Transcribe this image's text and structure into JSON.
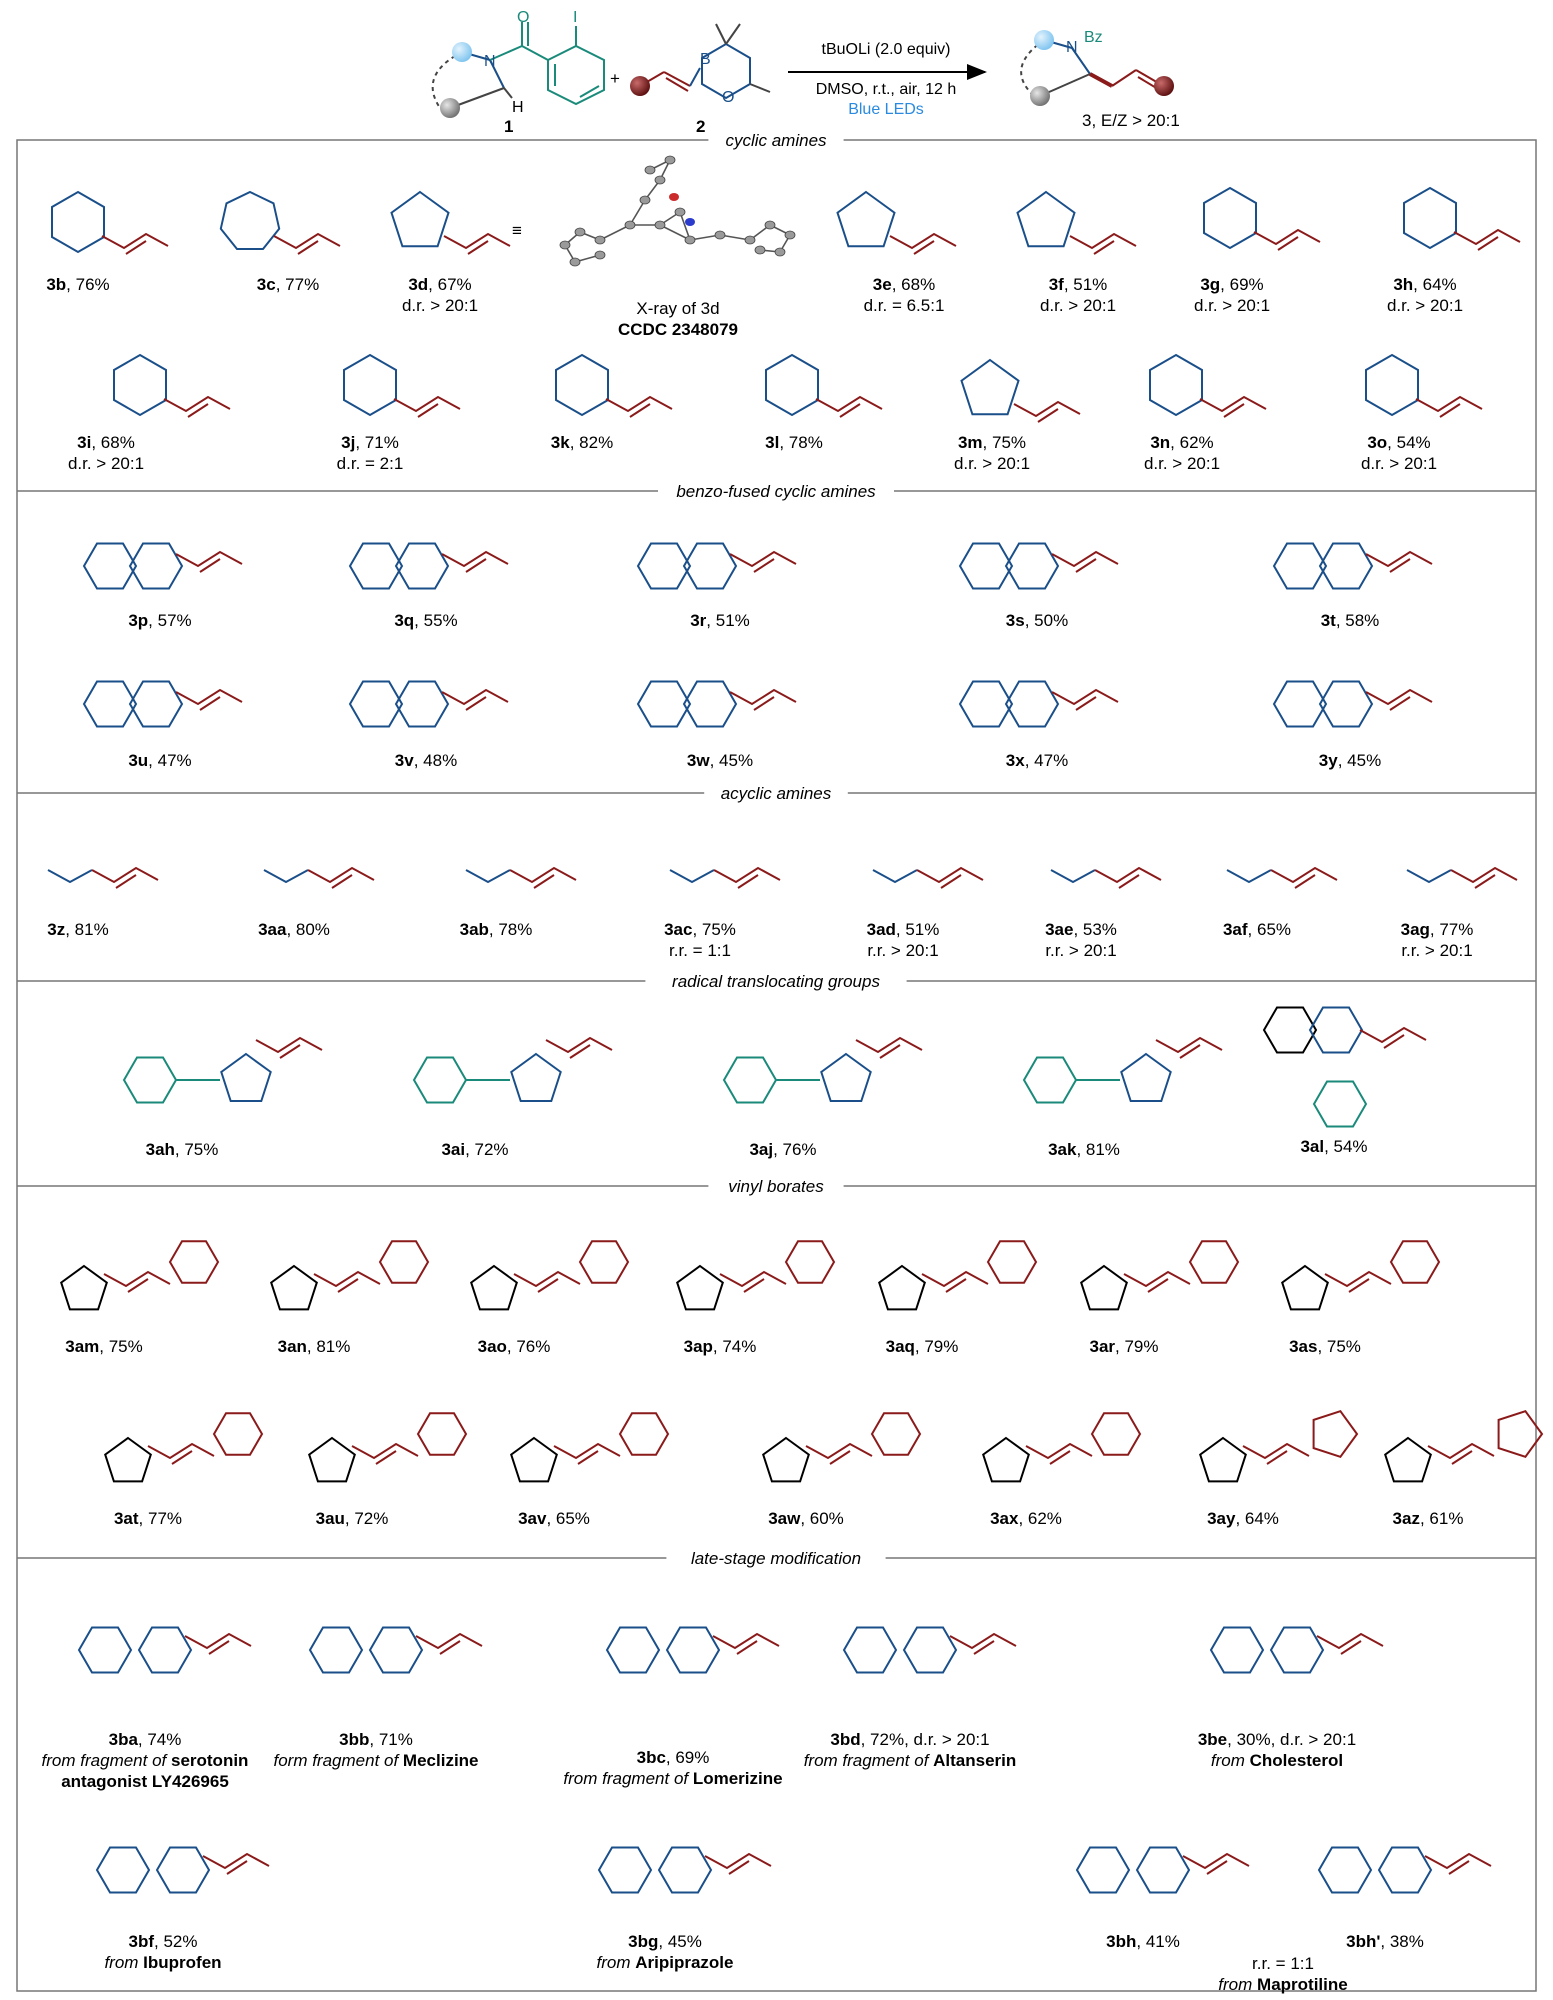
{
  "colors": {
    "amine": "#1a4f8a",
    "aryl": "#1a8a7a",
    "alkene": "#8b1a1a",
    "frame": "#777777",
    "highlight": "#9fd2f2",
    "led": "#2a8ae0"
  },
  "scheme": {
    "reactant1_label": "1",
    "reactant2_label": "2",
    "product_label": "3, E/Z > 20:1",
    "plus": "+",
    "reagent": "tBuOLi (2.0 equiv)",
    "conditions": "DMSO, r.t., air, 12 h",
    "light": "Blue LEDs",
    "atoms": {
      "N": "N",
      "H": "H",
      "O": "O",
      "I": "I",
      "B": "B",
      "Bz": "Bz"
    }
  },
  "sections": [
    "cyclic amines",
    "benzo-fused cyclic amines",
    "acyclic amines",
    "radical translocating groups",
    "vinyl borates",
    "late-stage modification"
  ],
  "xray": {
    "caption": "X-ray of 3d",
    "ccdc": "CCDC 2348079",
    "equiv_symbol": "≡"
  },
  "entries": [
    {
      "id": "3b",
      "line1": "3b, 76%"
    },
    {
      "id": "3c",
      "line1": "3c, 77%"
    },
    {
      "id": "3d",
      "line1": "3d, 67%",
      "line2": "d.r. > 20:1"
    },
    {
      "id": "3e",
      "line1": "3e, 68%",
      "line2": "d.r. = 6.5:1"
    },
    {
      "id": "3f",
      "line1": "3f, 51%",
      "line2": "d.r. > 20:1"
    },
    {
      "id": "3g",
      "line1": "3g, 69%",
      "line2": "d.r. > 20:1"
    },
    {
      "id": "3h",
      "line1": "3h, 64%",
      "line2": "d.r. > 20:1"
    },
    {
      "id": "3i",
      "line1": "3i, 68%",
      "line2": "d.r. > 20:1"
    },
    {
      "id": "3j",
      "line1": "3j, 71%",
      "line2": "d.r. = 2:1"
    },
    {
      "id": "3k",
      "line1": "3k, 82%"
    },
    {
      "id": "3l",
      "line1": "3l, 78%"
    },
    {
      "id": "3m",
      "line1": "3m, 75%",
      "line2": "d.r. > 20:1"
    },
    {
      "id": "3n",
      "line1": "3n, 62%",
      "line2": "d.r. > 20:1"
    },
    {
      "id": "3o",
      "line1": "3o, 54%",
      "line2": "d.r. > 20:1"
    },
    {
      "id": "3p",
      "line1": "3p, 57%"
    },
    {
      "id": "3q",
      "line1": "3q, 55%"
    },
    {
      "id": "3r",
      "line1": "3r, 51%"
    },
    {
      "id": "3s",
      "line1": "3s, 50%"
    },
    {
      "id": "3t",
      "line1": "3t, 58%"
    },
    {
      "id": "3u",
      "line1": "3u, 47%"
    },
    {
      "id": "3v",
      "line1": "3v, 48%"
    },
    {
      "id": "3w",
      "line1": "3w, 45%"
    },
    {
      "id": "3x",
      "line1": "3x, 47%"
    },
    {
      "id": "3y",
      "line1": "3y, 45%"
    },
    {
      "id": "3z",
      "line1": "3z, 81%"
    },
    {
      "id": "3aa",
      "line1": "3aa, 80%"
    },
    {
      "id": "3ab",
      "line1": "3ab, 78%"
    },
    {
      "id": "3ac",
      "line1": "3ac, 75%",
      "line2": "r.r. = 1:1"
    },
    {
      "id": "3ad",
      "line1": "3ad, 51%",
      "line2": "r.r. > 20:1"
    },
    {
      "id": "3ae",
      "line1": "3ae, 53%",
      "line2": "r.r. > 20:1"
    },
    {
      "id": "3af",
      "line1": "3af, 65%"
    },
    {
      "id": "3ag",
      "line1": "3ag, 77%",
      "line2": "r.r. > 20:1"
    },
    {
      "id": "3ah",
      "line1": "3ah, 75%"
    },
    {
      "id": "3ai",
      "line1": "3ai, 72%"
    },
    {
      "id": "3aj",
      "line1": "3aj, 76%"
    },
    {
      "id": "3ak",
      "line1": "3ak, 81%"
    },
    {
      "id": "3al",
      "line1": "3al, 54%"
    },
    {
      "id": "3am",
      "line1": "3am, 75%"
    },
    {
      "id": "3an",
      "line1": "3an, 81%"
    },
    {
      "id": "3ao",
      "line1": "3ao, 76%"
    },
    {
      "id": "3ap",
      "line1": "3ap, 74%"
    },
    {
      "id": "3aq",
      "line1": "3aq, 79%"
    },
    {
      "id": "3ar",
      "line1": "3ar, 79%"
    },
    {
      "id": "3as",
      "line1": "3as, 75%"
    },
    {
      "id": "3at",
      "line1": "3at, 77%"
    },
    {
      "id": "3au",
      "line1": "3au, 72%"
    },
    {
      "id": "3av",
      "line1": "3av, 65%"
    },
    {
      "id": "3aw",
      "line1": "3aw, 60%"
    },
    {
      "id": "3ax",
      "line1": "3ax, 62%"
    },
    {
      "id": "3ay",
      "line1": "3ay, 64%"
    },
    {
      "id": "3az",
      "line1": "3az, 61%"
    },
    {
      "id": "3ba",
      "line1": "3ba, 74%",
      "line2": "from fragment of serotonin",
      "line3": "antagonist LY426965"
    },
    {
      "id": "3bb",
      "line1": "3bb, 71%",
      "line2": "form fragment of Meclizine"
    },
    {
      "id": "3bc",
      "line1": "3bc, 69%",
      "line2": "from fragment of Lomerizine"
    },
    {
      "id": "3bd",
      "line1": "3bd, 72%, d.r. > 20:1",
      "line2": "from fragment of Altanserin"
    },
    {
      "id": "3be",
      "line1": "3be, 30%, d.r. > 20:1",
      "line2": "from Cholesterol"
    },
    {
      "id": "3bf",
      "line1": "3bf, 52%",
      "line2": "from Ibuprofen"
    },
    {
      "id": "3bg",
      "line1": "3bg, 45%",
      "line2": "from Aripiprazole"
    },
    {
      "id": "3bh",
      "line1": "3bh, 41%"
    },
    {
      "id": "3bh2",
      "line1": "3bh', 38%"
    },
    {
      "id": "3bh-rr",
      "line1": "r.r. = 1:1",
      "line2": "from Maprotiline"
    }
  ]
}
